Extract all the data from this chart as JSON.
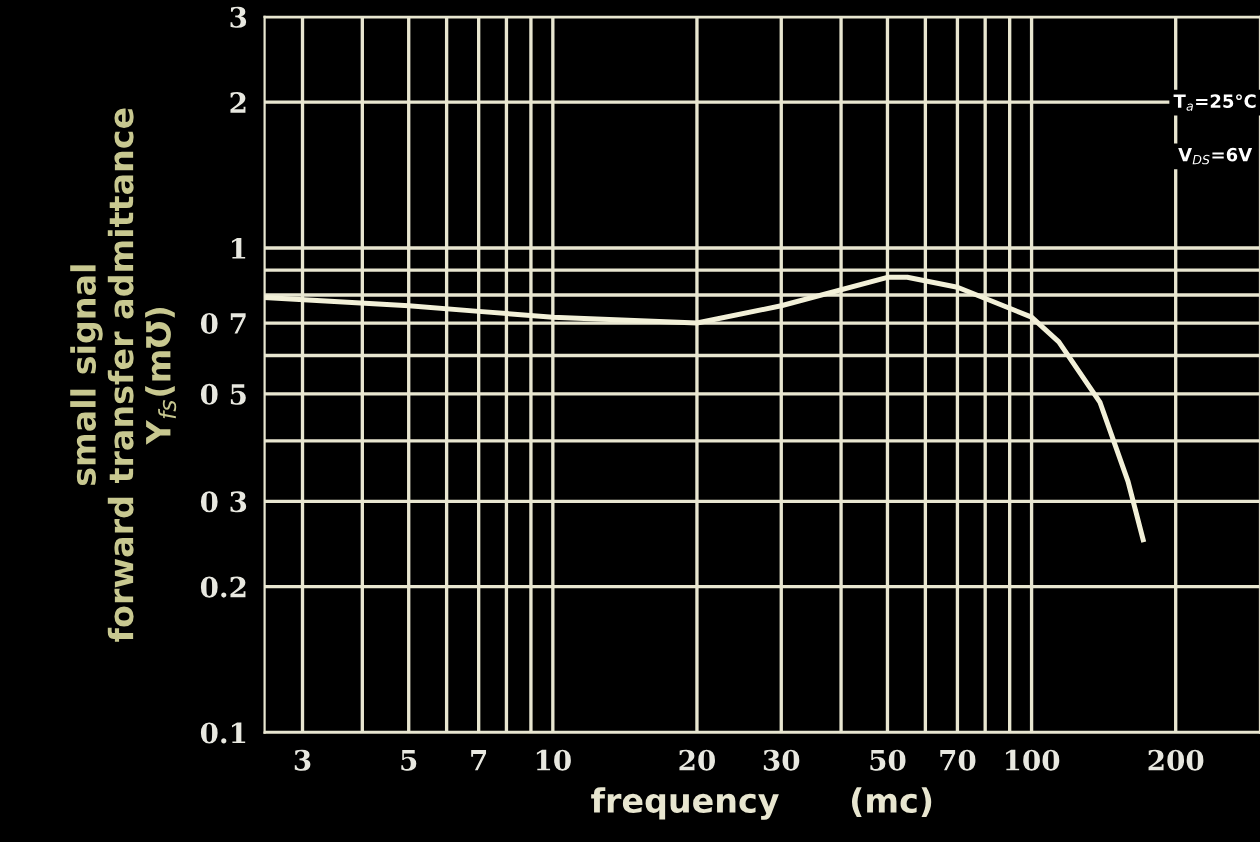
{
  "chart_data": {
    "type": "line",
    "xlabel": "frequency      (mc)",
    "ylabel": "small signal\nforward transfer admittance\nY$_{fs}$(m℧)",
    "x": [
      2.5,
      5,
      7,
      10,
      20,
      30,
      50,
      55,
      70,
      100,
      114,
      139,
      159,
      171
    ],
    "series": [
      {
        "color": "#f2f0d8",
        "values": [
          0.79,
          0.76,
          0.74,
          0.72,
          0.7,
          0.76,
          0.87,
          0.87,
          0.83,
          0.72,
          0.64,
          0.48,
          0.33,
          0.25
        ]
      }
    ],
    "log": "xy",
    "xlim": [
      2.5,
      300
    ],
    "ylim": [
      0.1,
      3
    ],
    "xticks": [
      3,
      {
        "value": 4,
        "label": null
      },
      5,
      {
        "value": 6,
        "label": null
      },
      7,
      {
        "value": 8,
        "label": null
      },
      {
        "value": 9,
        "label": null
      },
      10,
      20,
      30,
      {
        "value": 40,
        "label": null
      },
      50,
      {
        "value": 60,
        "label": null
      },
      70,
      {
        "value": 80,
        "label": null
      },
      {
        "value": 90,
        "label": null
      },
      100,
      200
    ],
    "yticks": [
      {
        "value": 0.1,
        "label": "0.1"
      },
      {
        "value": 0.2,
        "label": "0.2"
      },
      {
        "value": 0.3,
        "label": "0 3"
      },
      {
        "value": 0.4,
        "label": null
      },
      {
        "value": 0.5,
        "label": "0 5"
      },
      {
        "value": 0.6,
        "label": null
      },
      {
        "value": 0.7,
        "label": "0 7"
      },
      {
        "value": 0.8,
        "label": null
      },
      {
        "value": 0.9,
        "label": null
      },
      1,
      2,
      3
    ],
    "grid": true,
    "marker": "none",
    "line_style": "solid",
    "annotations": [
      "T$_{a}$=25°C",
      "V$_{DS}$=6V"
    ]
  }
}
